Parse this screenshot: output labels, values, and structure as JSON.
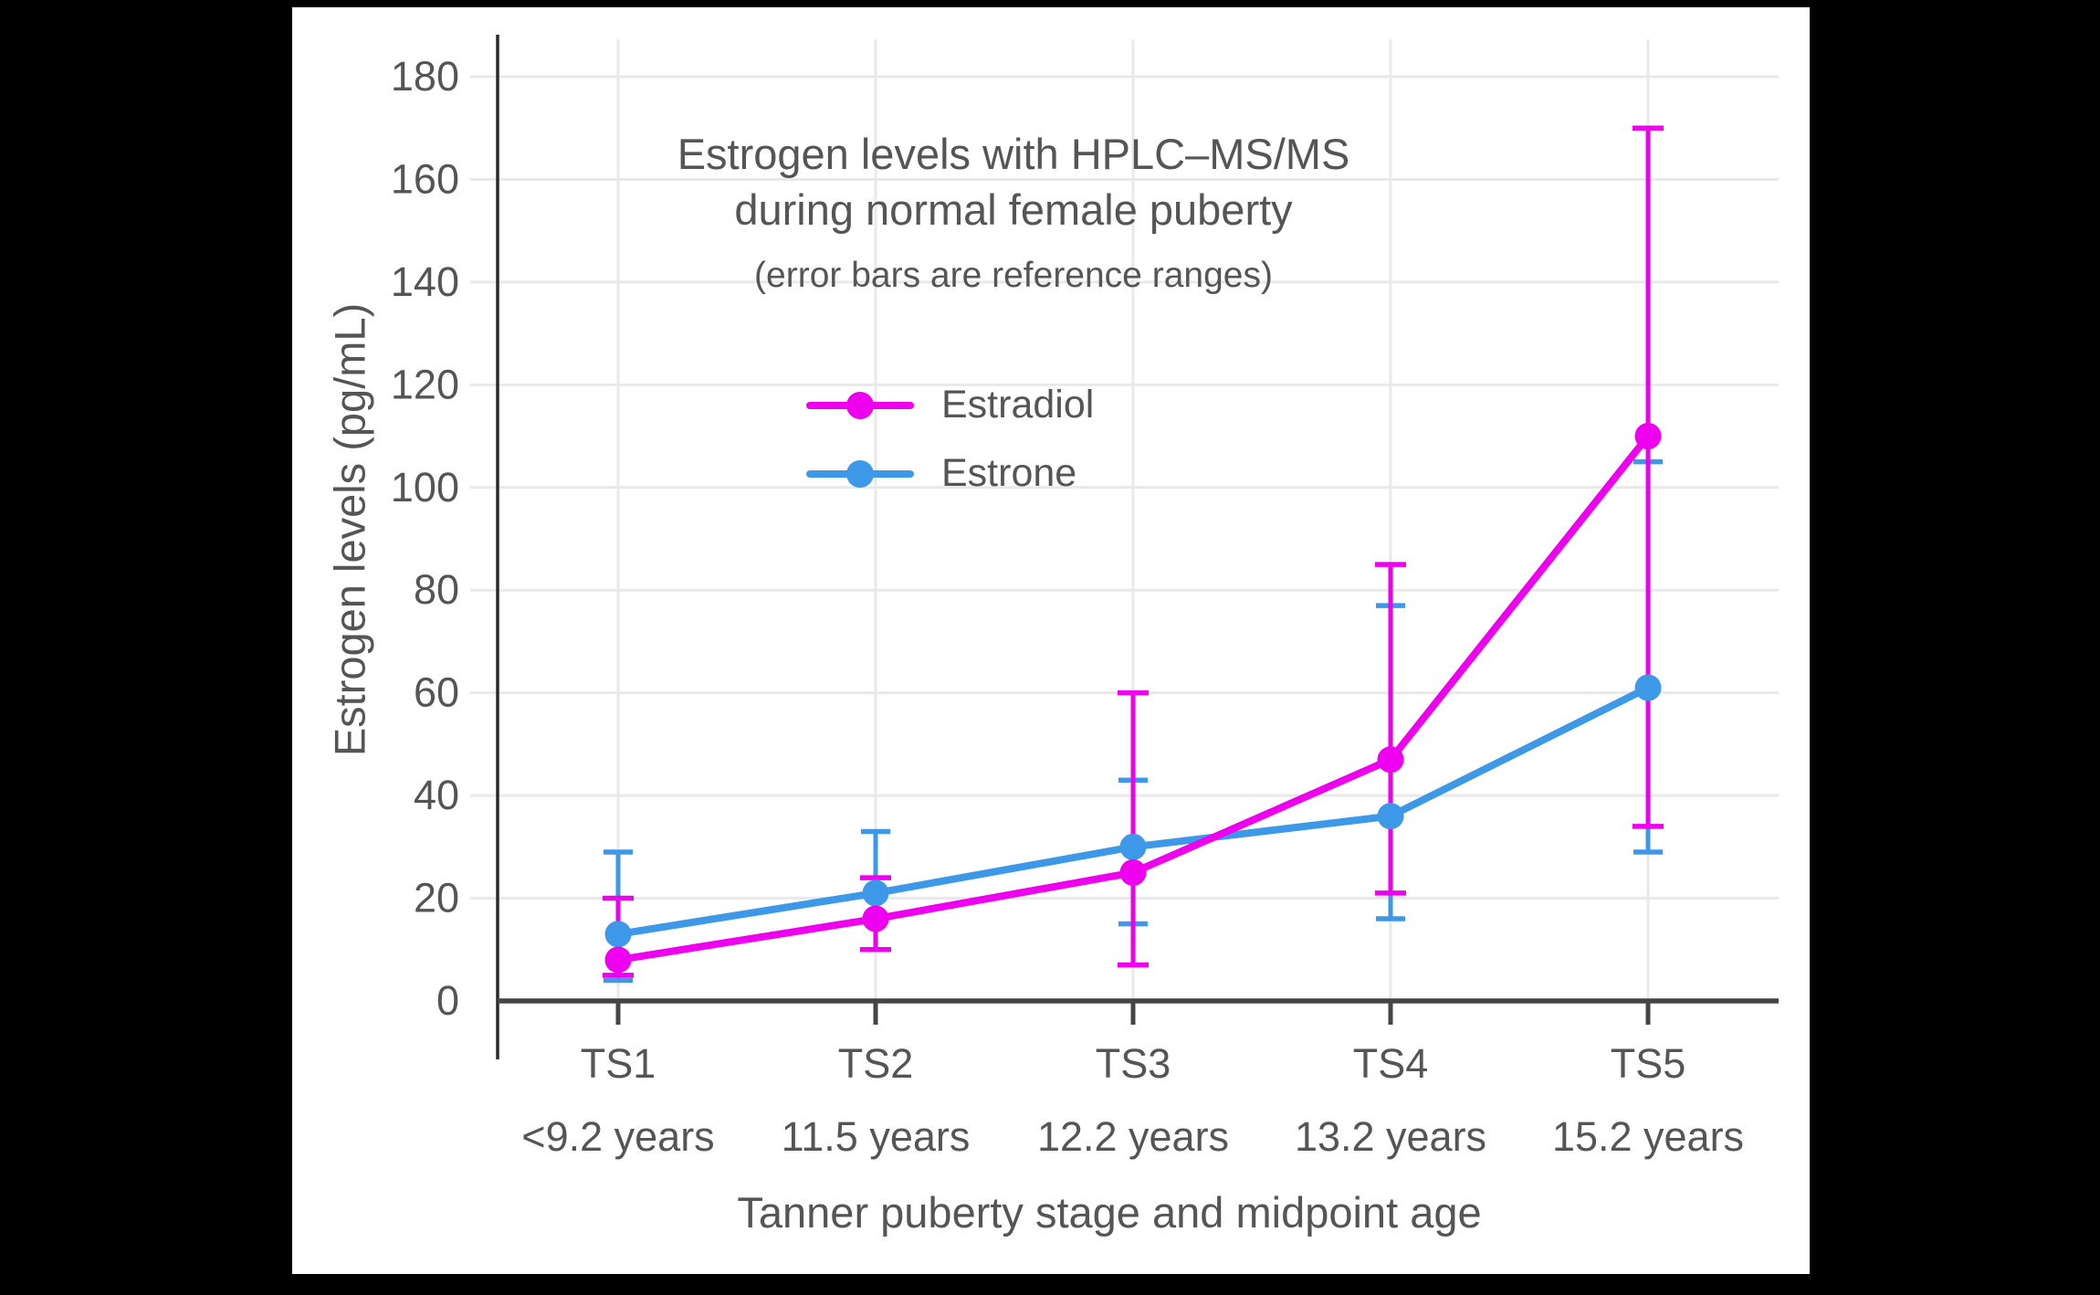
{
  "page": {
    "background_color": "#000000",
    "canvas_color": "#ffffff"
  },
  "chart_data": {
    "type": "line",
    "title_lines": [
      "Estrogen levels with HPLC–MS/MS",
      "during normal female puberty"
    ],
    "subtitle": "(error bars are reference ranges)",
    "xlabel": "Tanner puberty stage and midpoint age",
    "ylabel": "Estrogen levels (pg/mL)",
    "categories": [
      "TS1",
      "TS2",
      "TS3",
      "TS4",
      "TS5"
    ],
    "category_ages": [
      "<9.2 years",
      "11.5 years",
      "12.2 years",
      "13.2 years",
      "15.2 years"
    ],
    "ylim": [
      0,
      180
    ],
    "ytick_step": 20,
    "yticks": [
      0,
      20,
      40,
      60,
      80,
      100,
      120,
      140,
      160,
      180
    ],
    "grid": true,
    "legend_position": "inside-upper-left",
    "error_bar_meaning": "reference ranges",
    "series": [
      {
        "name": "Estradiol",
        "color": "#ee00ee",
        "values": [
          8,
          16,
          25,
          47,
          110
        ],
        "range_low": [
          5,
          10,
          7,
          21,
          34
        ],
        "range_high": [
          20,
          24,
          60,
          85,
          170
        ]
      },
      {
        "name": "Estrone",
        "color": "#3d99e8",
        "values": [
          13,
          21,
          30,
          36,
          61
        ],
        "range_low": [
          4,
          10,
          15,
          16,
          29
        ],
        "range_high": [
          29,
          33,
          43,
          77,
          105
        ]
      }
    ],
    "text_color": "#555555",
    "grid_color": "#e9e9e9",
    "axis_color": "#454545",
    "y_axis_line_color": "#2a2a2a"
  }
}
